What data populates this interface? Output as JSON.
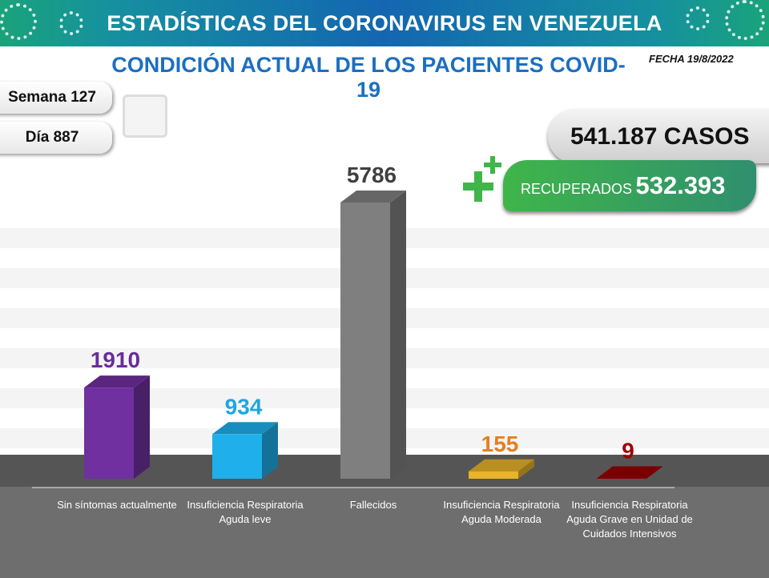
{
  "header": {
    "title": "ESTADÍSTICAS DEL CORONAVIRUS EN VENEZUELA",
    "subtitle": "CONDICIÓN ACTUAL DE LOS PACIENTES COVID-19",
    "date": "FECHA 19/8/2022"
  },
  "week": "Semana 127",
  "day": "Día 887",
  "icons": {
    "calendar": "calendar-icon",
    "plus": "plus-icon",
    "virus": "virus-icon"
  },
  "totals": {
    "cases": "541.187 CASOS",
    "recovered_label": "RECUPERADOS",
    "recovered_value": "532.393"
  },
  "chart_data": {
    "type": "bar",
    "categories": [
      "Sin síntomas actualmente",
      "Insuficiencia Respiratoria Aguda leve",
      "Fallecidos",
      "Insuficiencia Respiratoria Aguda Moderada",
      "Insuficiencia Respiratoria Aguda Grave en Unidad de Cuidados Intensivos"
    ],
    "values": [
      1910,
      934,
      5786,
      155,
      9
    ],
    "value_labels": [
      "1910",
      "934",
      "5786",
      "155",
      "9"
    ],
    "colors": [
      "#7030a0",
      "#1fb0ec",
      "#7f7f7f",
      "#e9b32a",
      "#990000"
    ],
    "label_colors": [
      "#6a2c9a",
      "#1fa6e0",
      "#404040",
      "#e67e22",
      "#a00000"
    ],
    "grid": true
  }
}
